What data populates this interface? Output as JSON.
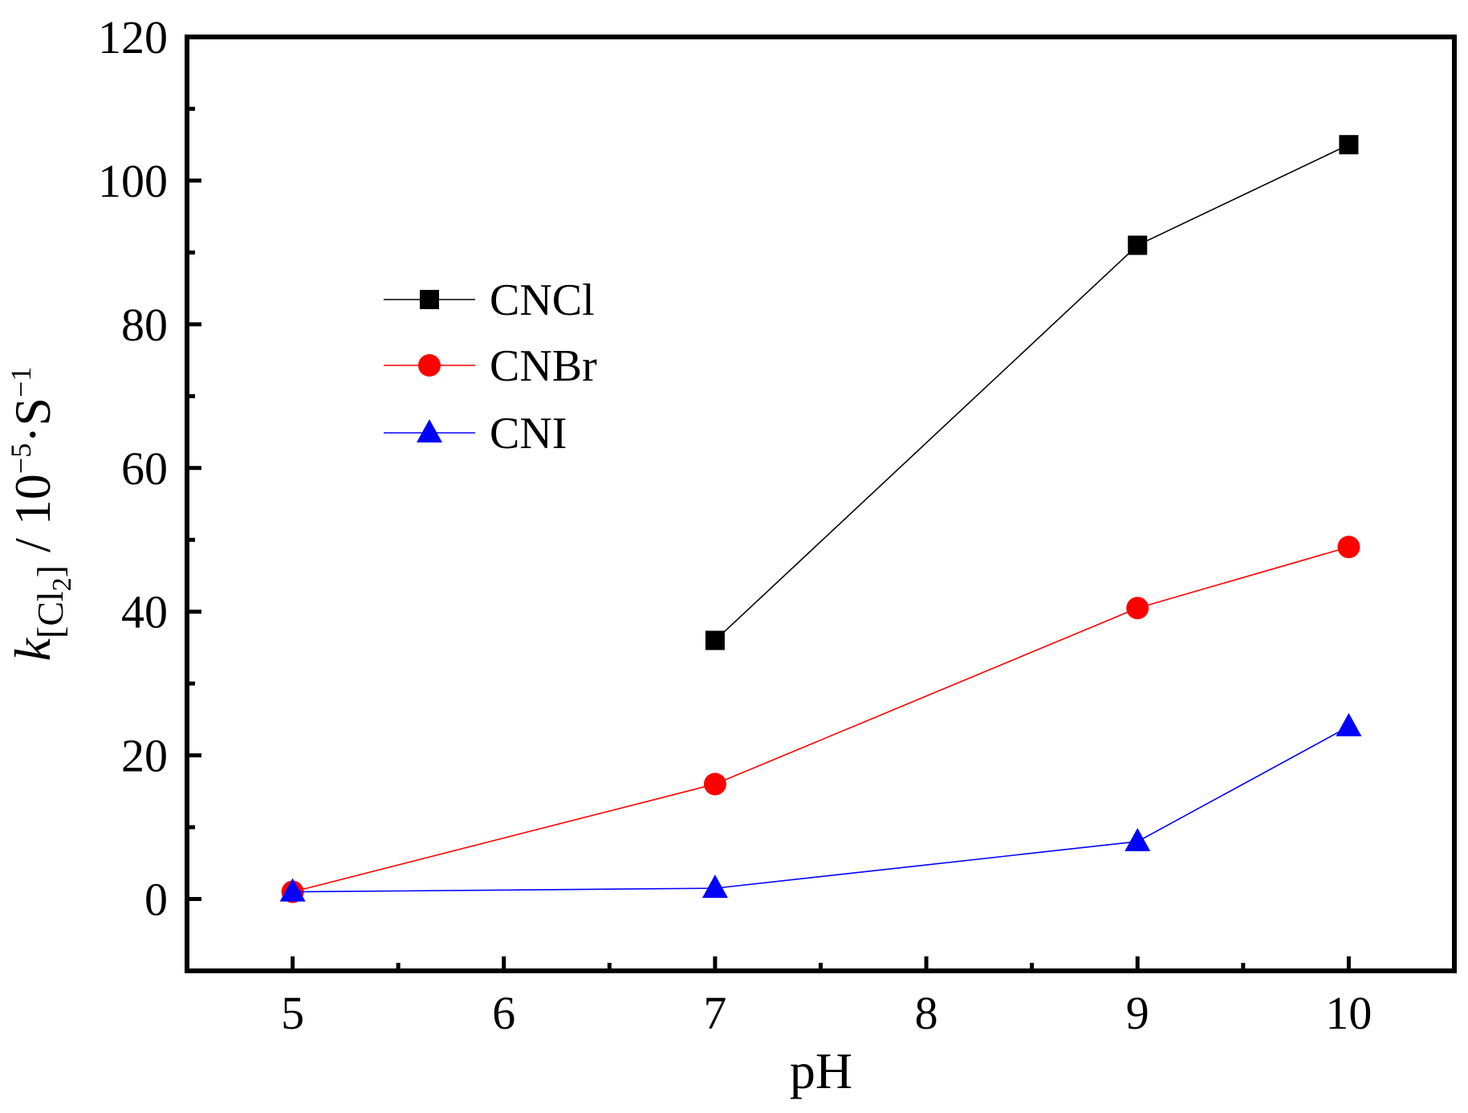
{
  "chart_data": {
    "type": "line",
    "xlabel": "pH",
    "ylabel": {
      "k": "k",
      "sub_open": "[Cl",
      "sub_digit": "2",
      "sub_close": "]",
      "units_a": " / 10",
      "exp1": "−5",
      "units_b": "·S",
      "exp2": "−1"
    },
    "xlim": [
      4.5,
      10.5
    ],
    "ylim": [
      -10,
      120
    ],
    "xticks": [
      5,
      6,
      7,
      8,
      9,
      10
    ],
    "yticks": [
      0,
      20,
      40,
      60,
      80,
      100,
      120
    ],
    "legend_position": "upper-left",
    "series": [
      {
        "name": "CNCl",
        "color": "#000000",
        "marker": "square",
        "x": [
          7,
          9,
          10
        ],
        "y": [
          36,
          91,
          105
        ]
      },
      {
        "name": "CNBr",
        "color": "#ff0000",
        "marker": "circle",
        "x": [
          5,
          7,
          9,
          10
        ],
        "y": [
          1,
          16,
          40.5,
          49
        ]
      },
      {
        "name": "CNI",
        "color": "#0000ff",
        "marker": "triangle",
        "x": [
          5,
          7,
          9,
          10
        ],
        "y": [
          1,
          1.5,
          8,
          24
        ]
      }
    ]
  }
}
